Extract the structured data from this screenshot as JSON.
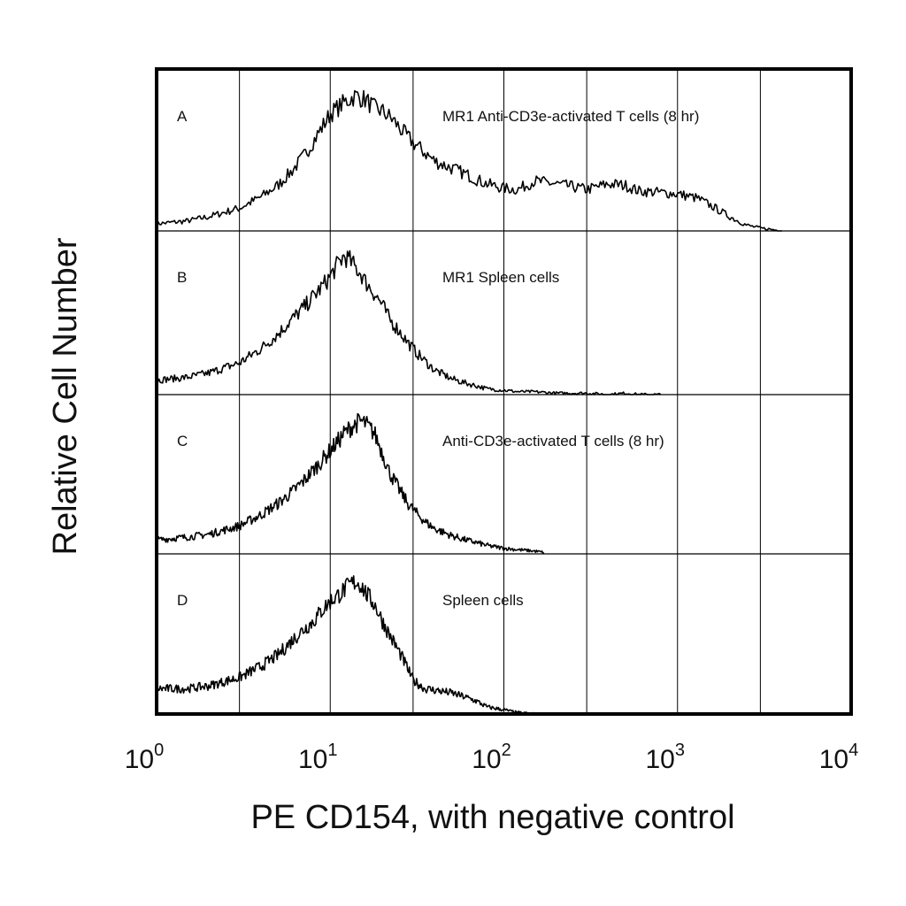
{
  "chart_data": {
    "type": "area",
    "xscale": "log",
    "xlim": [
      1,
      10000
    ],
    "xlabel": "PE CD154, with negative control",
    "ylabel": "Relative Cell Number",
    "x_ticks": [
      {
        "base": "10",
        "exp": "0"
      },
      {
        "base": "10",
        "exp": "1"
      },
      {
        "base": "10",
        "exp": "2"
      },
      {
        "base": "10",
        "exp": "3"
      },
      {
        "base": "10",
        "exp": "4"
      }
    ],
    "grid": true,
    "panels": [
      {
        "letter": "A",
        "title": "MR1 Anti-CD3e-activated T cells (8 hr)",
        "x": [
          1,
          1.5,
          2,
          3,
          4,
          5,
          6,
          7,
          8,
          9,
          10,
          12,
          14,
          16,
          18,
          20,
          23,
          26,
          30,
          35,
          40,
          50,
          60,
          70,
          80,
          100,
          120,
          150,
          200,
          250,
          300,
          400,
          500,
          600,
          800,
          1000,
          1300,
          1600,
          2000,
          2500,
          3000,
          3500,
          4000
        ],
        "values": [
          0.05,
          0.07,
          0.1,
          0.16,
          0.24,
          0.32,
          0.42,
          0.52,
          0.63,
          0.73,
          0.82,
          0.9,
          0.95,
          0.92,
          0.86,
          0.84,
          0.78,
          0.7,
          0.62,
          0.55,
          0.49,
          0.44,
          0.4,
          0.36,
          0.33,
          0.3,
          0.29,
          0.35,
          0.33,
          0.31,
          0.29,
          0.33,
          0.32,
          0.28,
          0.27,
          0.26,
          0.23,
          0.17,
          0.1,
          0.04,
          0.02,
          0.01,
          0.0
        ]
      },
      {
        "letter": "B",
        "title": "MR1 Spleen cells",
        "x": [
          1,
          1.5,
          2,
          3,
          4,
          5,
          6,
          7,
          8,
          9,
          10,
          11,
          12,
          13,
          14,
          15,
          16,
          18,
          20,
          22,
          25,
          28,
          32,
          36,
          40,
          50,
          60,
          70,
          80,
          100,
          120,
          150,
          200,
          300,
          400,
          500,
          600,
          800
        ],
        "values": [
          0.1,
          0.12,
          0.15,
          0.22,
          0.32,
          0.42,
          0.52,
          0.6,
          0.68,
          0.75,
          0.82,
          0.9,
          0.96,
          0.93,
          0.88,
          0.84,
          0.78,
          0.7,
          0.62,
          0.52,
          0.44,
          0.36,
          0.28,
          0.22,
          0.17,
          0.11,
          0.08,
          0.06,
          0.04,
          0.03,
          0.02,
          0.02,
          0.01,
          0.01,
          0.0,
          0.01,
          0.0,
          0.0
        ]
      },
      {
        "letter": "C",
        "title": "Anti-CD3e-activated T cells (8 hr)",
        "x": [
          1,
          1.5,
          2,
          3,
          4,
          5,
          6,
          7,
          8,
          9,
          10,
          11,
          12,
          13,
          14,
          15,
          16,
          18,
          20,
          22,
          25,
          28,
          32,
          36,
          40,
          50,
          60,
          70,
          80,
          100,
          120,
          150,
          170
        ],
        "values": [
          0.1,
          0.12,
          0.14,
          0.2,
          0.28,
          0.36,
          0.44,
          0.52,
          0.6,
          0.67,
          0.74,
          0.8,
          0.86,
          0.9,
          0.93,
          0.95,
          0.93,
          0.86,
          0.72,
          0.58,
          0.46,
          0.36,
          0.28,
          0.22,
          0.18,
          0.13,
          0.1,
          0.08,
          0.06,
          0.04,
          0.03,
          0.02,
          0.01
        ]
      },
      {
        "letter": "D",
        "title": "Spleen cells",
        "x": [
          1,
          1.5,
          2,
          3,
          4,
          5,
          6,
          7,
          8,
          9,
          10,
          11,
          12,
          13,
          14,
          15,
          16,
          18,
          20,
          22,
          25,
          28,
          30,
          35,
          40,
          50,
          60,
          70,
          80,
          100,
          120,
          150
        ],
        "values": [
          0.18,
          0.18,
          0.2,
          0.26,
          0.34,
          0.42,
          0.52,
          0.6,
          0.66,
          0.74,
          0.8,
          0.84,
          0.88,
          0.92,
          0.94,
          0.92,
          0.86,
          0.78,
          0.66,
          0.56,
          0.44,
          0.32,
          0.24,
          0.18,
          0.17,
          0.15,
          0.12,
          0.09,
          0.05,
          0.03,
          0.01,
          0.0
        ]
      }
    ]
  }
}
